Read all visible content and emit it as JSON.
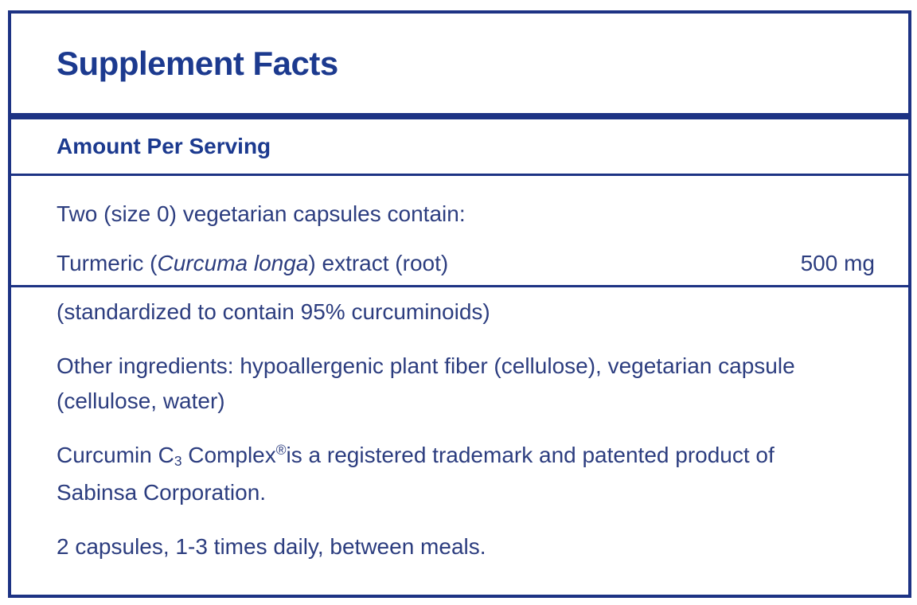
{
  "panel": {
    "title": "Supplement Facts",
    "serving_header": "Amount Per Serving",
    "serving_statement": "Two (size 0) vegetarian capsules contain:",
    "ingredient": {
      "name_prefix": "Turmeric (",
      "botanical_name": "Curcuma longa",
      "name_suffix": ") extract (root)",
      "amount": "500 mg"
    },
    "standardization_note": "(standardized to contain 95% curcuminoids)",
    "other_ingredients_lines": [
      "Other ingredients: hypoallergenic plant fiber (cellulose), vegetarian capsule",
      "(cellulose, water)"
    ],
    "trademark": {
      "prefix": "Curcumin C",
      "subscript": "3",
      "mid": " Complex",
      "superscript": "®",
      "suffix_line1": "is a registered trademark and patented product of",
      "suffix_line2": "Sabinsa Corporation."
    },
    "dosage": "2 capsules, 1-3 times daily, between meals.",
    "colors": {
      "border_navy": "#1d3384",
      "heading_blue": "#1c3a8f",
      "body_blue": "#2c3d7f",
      "background": "#ffffff"
    }
  }
}
